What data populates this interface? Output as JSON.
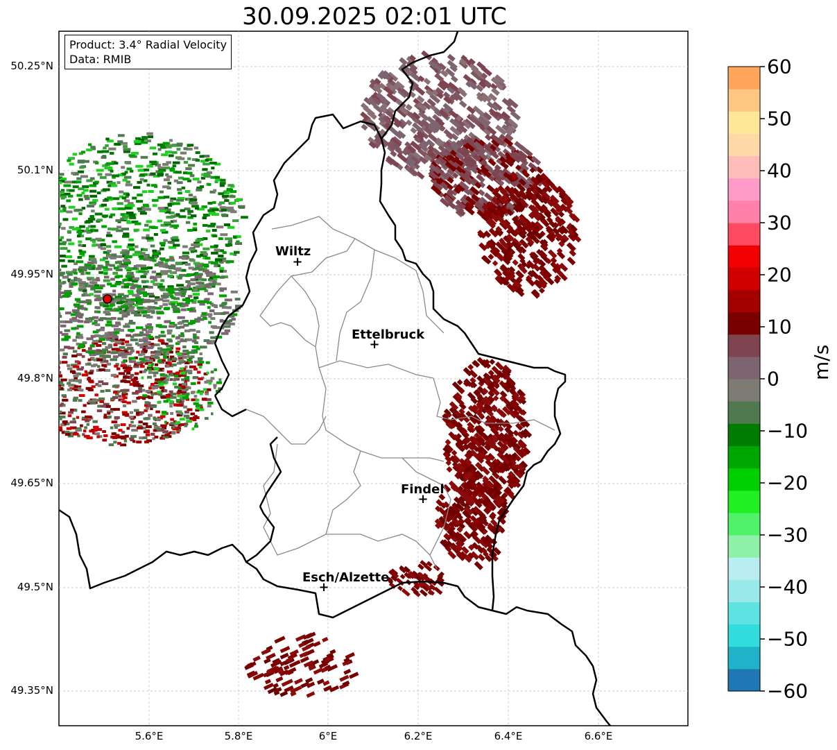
{
  "title": "30.09.2025 02:01 UTC",
  "info": {
    "product": "Product: 3.4° Radial Velocity",
    "data": "Data: RMIB"
  },
  "lat_labels": [
    "50.25°N",
    "50.1°N",
    "49.95°N",
    "49.8°N",
    "49.65°N",
    "49.5°N",
    "49.35°N"
  ],
  "lon_labels": [
    "5.6°E",
    "5.8°E",
    "6°E",
    "6.2°E",
    "6.4°E",
    "6.6°E"
  ],
  "cities": [
    "Wiltz",
    "Ettelbruck",
    "Findel",
    "Esch/Alzette"
  ],
  "colorbar": {
    "unit": "m/s",
    "ticks": [
      "60",
      "50",
      "40",
      "30",
      "20",
      "10",
      "0",
      "−10",
      "−20",
      "−30",
      "−40",
      "−50",
      "−60"
    ],
    "min": -60,
    "max": 60,
    "colors": [
      "#1f77b4",
      "#20b2c8",
      "#30dcdc",
      "#5ee3e3",
      "#9ae9ea",
      "#b9eef0",
      "#8ff0a8",
      "#50f26a",
      "#20f020",
      "#00d000",
      "#00a600",
      "#007d00",
      "#4f7a4f",
      "#7c7c74",
      "#7e6470",
      "#7e4550",
      "#7a0000",
      "#a50000",
      "#d00000",
      "#f00000",
      "#ff4a60",
      "#ff80a8",
      "#ff9ac9",
      "#ffbcb8",
      "#ffd9a8",
      "#ffe79a",
      "#ffc783",
      "#ffa65a"
    ]
  },
  "colors": {
    "inbound_green": "#009900",
    "outbound_red": "#7a0000",
    "near_zero": "#7f6b70",
    "radar_site": "#e00000",
    "border": "#000000",
    "canton_line": "#888888"
  }
}
